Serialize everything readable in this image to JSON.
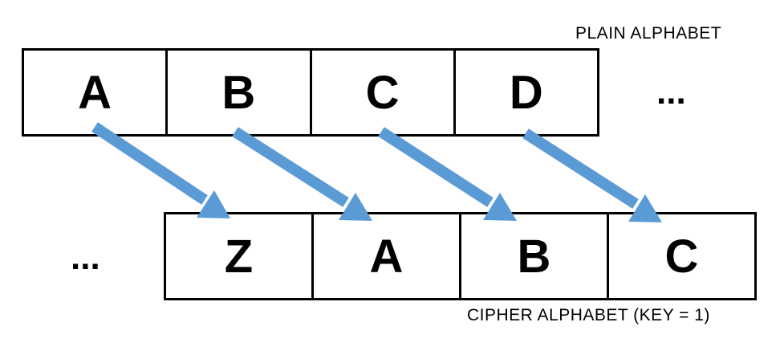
{
  "plain_alphabet": {
    "label": "PLAIN ALPHABET",
    "letters": [
      "A",
      "B",
      "C",
      "D"
    ],
    "trailing_ellipsis": "..."
  },
  "cipher_alphabet": {
    "label": "CIPHER ALPHABET (KEY = 1)",
    "leading_ellipsis": "...",
    "letters": [
      "Z",
      "A",
      "B",
      "C"
    ]
  },
  "arrow_color": "#5b9bd5",
  "mappings": [
    {
      "from": "A",
      "to": "Z"
    },
    {
      "from": "B",
      "to": "A"
    },
    {
      "from": "C",
      "to": "B"
    },
    {
      "from": "D",
      "to": "C"
    }
  ]
}
